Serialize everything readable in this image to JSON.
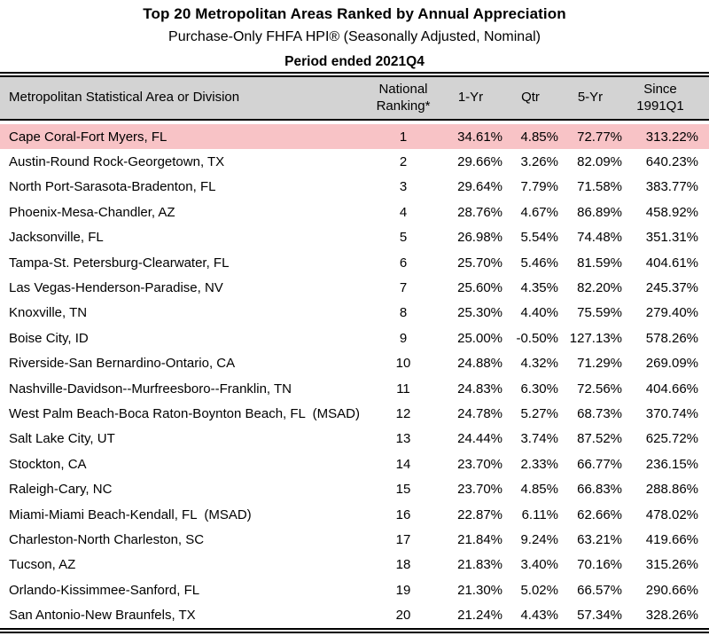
{
  "title": "Top 20 Metropolitan Areas Ranked by Annual Appreciation",
  "subtitle": "Purchase-Only FHFA HPI® (Seasonally Adjusted, Nominal)",
  "period": "Period ended 2021Q4",
  "colors": {
    "highlight_row": "#f8c3c6",
    "header_background": "#d3d3d3",
    "border": "#000000",
    "text": "#000000"
  },
  "table": {
    "columns": [
      "Metropolitan Statistical Area or Division",
      "National Ranking*",
      "1-Yr",
      "Qtr",
      "5-Yr",
      "Since 1991Q1"
    ],
    "rows": [
      {
        "metro": "Cape Coral-Fort Myers, FL",
        "rank": "1",
        "yr1": "34.61%",
        "qtr": "4.85%",
        "yr5": "72.77%",
        "since": "313.22%",
        "highlight": true
      },
      {
        "metro": "Austin-Round Rock-Georgetown, TX",
        "rank": "2",
        "yr1": "29.66%",
        "qtr": "3.26%",
        "yr5": "82.09%",
        "since": "640.23%",
        "highlight": false
      },
      {
        "metro": "North Port-Sarasota-Bradenton, FL",
        "rank": "3",
        "yr1": "29.64%",
        "qtr": "7.79%",
        "yr5": "71.58%",
        "since": "383.77%",
        "highlight": false
      },
      {
        "metro": "Phoenix-Mesa-Chandler, AZ",
        "rank": "4",
        "yr1": "28.76%",
        "qtr": "4.67%",
        "yr5": "86.89%",
        "since": "458.92%",
        "highlight": false
      },
      {
        "metro": "Jacksonville, FL",
        "rank": "5",
        "yr1": "26.98%",
        "qtr": "5.54%",
        "yr5": "74.48%",
        "since": "351.31%",
        "highlight": false
      },
      {
        "metro": "Tampa-St. Petersburg-Clearwater, FL",
        "rank": "6",
        "yr1": "25.70%",
        "qtr": "5.46%",
        "yr5": "81.59%",
        "since": "404.61%",
        "highlight": false
      },
      {
        "metro": "Las Vegas-Henderson-Paradise, NV",
        "rank": "7",
        "yr1": "25.60%",
        "qtr": "4.35%",
        "yr5": "82.20%",
        "since": "245.37%",
        "highlight": false
      },
      {
        "metro": "Knoxville, TN",
        "rank": "8",
        "yr1": "25.30%",
        "qtr": "4.40%",
        "yr5": "75.59%",
        "since": "279.40%",
        "highlight": false
      },
      {
        "metro": "Boise City, ID",
        "rank": "9",
        "yr1": "25.00%",
        "qtr": "-0.50%",
        "yr5": "127.13%",
        "since": "578.26%",
        "highlight": false
      },
      {
        "metro": "Riverside-San Bernardino-Ontario, CA",
        "rank": "10",
        "yr1": "24.88%",
        "qtr": "4.32%",
        "yr5": "71.29%",
        "since": "269.09%",
        "highlight": false
      },
      {
        "metro": "Nashville-Davidson--Murfreesboro--Franklin, TN",
        "rank": "11",
        "yr1": "24.83%",
        "qtr": "6.30%",
        "yr5": "72.56%",
        "since": "404.66%",
        "highlight": false
      },
      {
        "metro": "West Palm Beach-Boca Raton-Boynton Beach, FL  (MSAD)",
        "rank": "12",
        "yr1": "24.78%",
        "qtr": "5.27%",
        "yr5": "68.73%",
        "since": "370.74%",
        "highlight": false
      },
      {
        "metro": "Salt Lake City, UT",
        "rank": "13",
        "yr1": "24.44%",
        "qtr": "3.74%",
        "yr5": "87.52%",
        "since": "625.72%",
        "highlight": false
      },
      {
        "metro": "Stockton, CA",
        "rank": "14",
        "yr1": "23.70%",
        "qtr": "2.33%",
        "yr5": "66.77%",
        "since": "236.15%",
        "highlight": false
      },
      {
        "metro": "Raleigh-Cary, NC",
        "rank": "15",
        "yr1": "23.70%",
        "qtr": "4.85%",
        "yr5": "66.83%",
        "since": "288.86%",
        "highlight": false
      },
      {
        "metro": "Miami-Miami Beach-Kendall, FL  (MSAD)",
        "rank": "16",
        "yr1": "22.87%",
        "qtr": "6.11%",
        "yr5": "62.66%",
        "since": "478.02%",
        "highlight": false
      },
      {
        "metro": "Charleston-North Charleston, SC",
        "rank": "17",
        "yr1": "21.84%",
        "qtr": "9.24%",
        "yr5": "63.21%",
        "since": "419.66%",
        "highlight": false
      },
      {
        "metro": "Tucson, AZ",
        "rank": "18",
        "yr1": "21.83%",
        "qtr": "3.40%",
        "yr5": "70.16%",
        "since": "315.26%",
        "highlight": false
      },
      {
        "metro": "Orlando-Kissimmee-Sanford, FL",
        "rank": "19",
        "yr1": "21.30%",
        "qtr": "5.02%",
        "yr5": "66.57%",
        "since": "290.66%",
        "highlight": false
      },
      {
        "metro": "San Antonio-New Braunfels, TX",
        "rank": "20",
        "yr1": "21.24%",
        "qtr": "4.43%",
        "yr5": "57.34%",
        "since": "328.26%",
        "highlight": false
      }
    ]
  }
}
